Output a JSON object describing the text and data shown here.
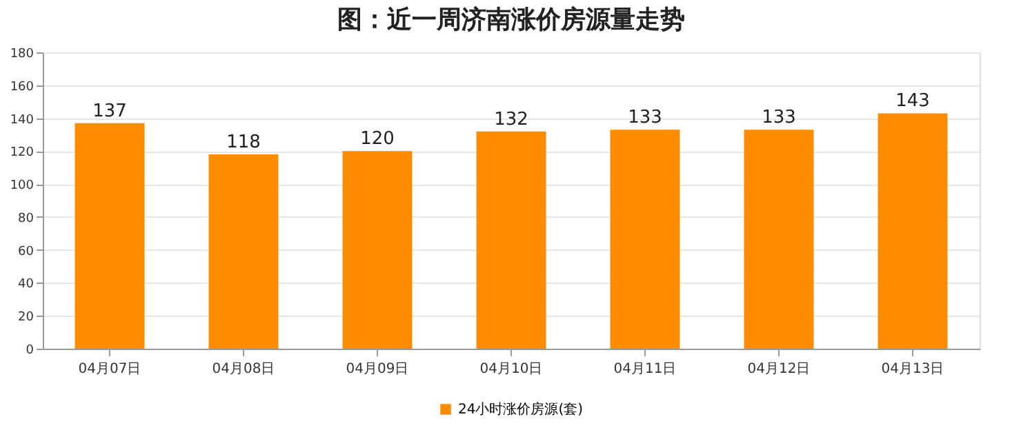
{
  "chart_data": {
    "type": "bar",
    "title": "图：近一周济南涨价房源量走势",
    "categories": [
      "04月07日",
      "04月08日",
      "04月09日",
      "04月10日",
      "04月11日",
      "04月12日",
      "04月13日"
    ],
    "series": [
      {
        "name": "24小时涨价房源(套)",
        "color": "#ff8c00",
        "values": [
          137,
          118,
          120,
          132,
          133,
          133,
          143
        ]
      }
    ],
    "ylim": [
      0,
      180
    ],
    "yticks": [
      0,
      20,
      40,
      60,
      80,
      100,
      120,
      140,
      160,
      180
    ],
    "grid": "y",
    "legend": "bottom",
    "data_labels": true
  }
}
